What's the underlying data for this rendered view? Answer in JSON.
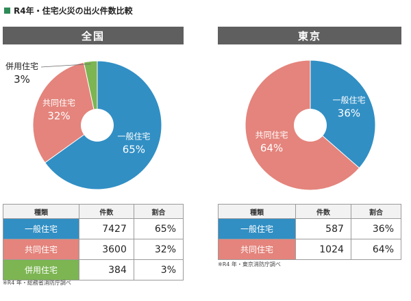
{
  "title": "R4年・住宅火災の出火件数比較",
  "colors": {
    "general": "#318fc4",
    "shared": "#e4847c",
    "mixed": "#7cb552",
    "header": "#5f5f5f"
  },
  "chart_data": [
    {
      "type": "pie",
      "title": "全国",
      "categories": [
        "一般住宅",
        "共同住宅",
        "併用住宅"
      ],
      "values": [
        7427,
        3600,
        384
      ],
      "percent_labels": [
        "65%",
        "32%",
        "3%"
      ],
      "colors": [
        "#318fc4",
        "#e4847c",
        "#7cb552"
      ],
      "table": {
        "headers": [
          "種類",
          "件数",
          "割合"
        ],
        "rows": [
          {
            "category": "一般住宅",
            "count": "7427",
            "ratio": "65%"
          },
          {
            "category": "共同住宅",
            "count": "3600",
            "ratio": "32%"
          },
          {
            "category": "併用住宅",
            "count": "384",
            "ratio": "3%"
          }
        ]
      },
      "source": "※R4 年・総務省消防庁調べ"
    },
    {
      "type": "pie",
      "title": "東京",
      "categories": [
        "一般住宅",
        "共同住宅"
      ],
      "values": [
        587,
        1024
      ],
      "percent_labels": [
        "36%",
        "64%"
      ],
      "colors": [
        "#318fc4",
        "#e4847c"
      ],
      "table": {
        "headers": [
          "種類",
          "件数",
          "割合"
        ],
        "rows": [
          {
            "category": "一般住宅",
            "count": "587",
            "ratio": "36%"
          },
          {
            "category": "共同住宅",
            "count": "1024",
            "ratio": "64%"
          }
        ]
      },
      "source": "※R4 年・東京消防庁調べ"
    }
  ]
}
